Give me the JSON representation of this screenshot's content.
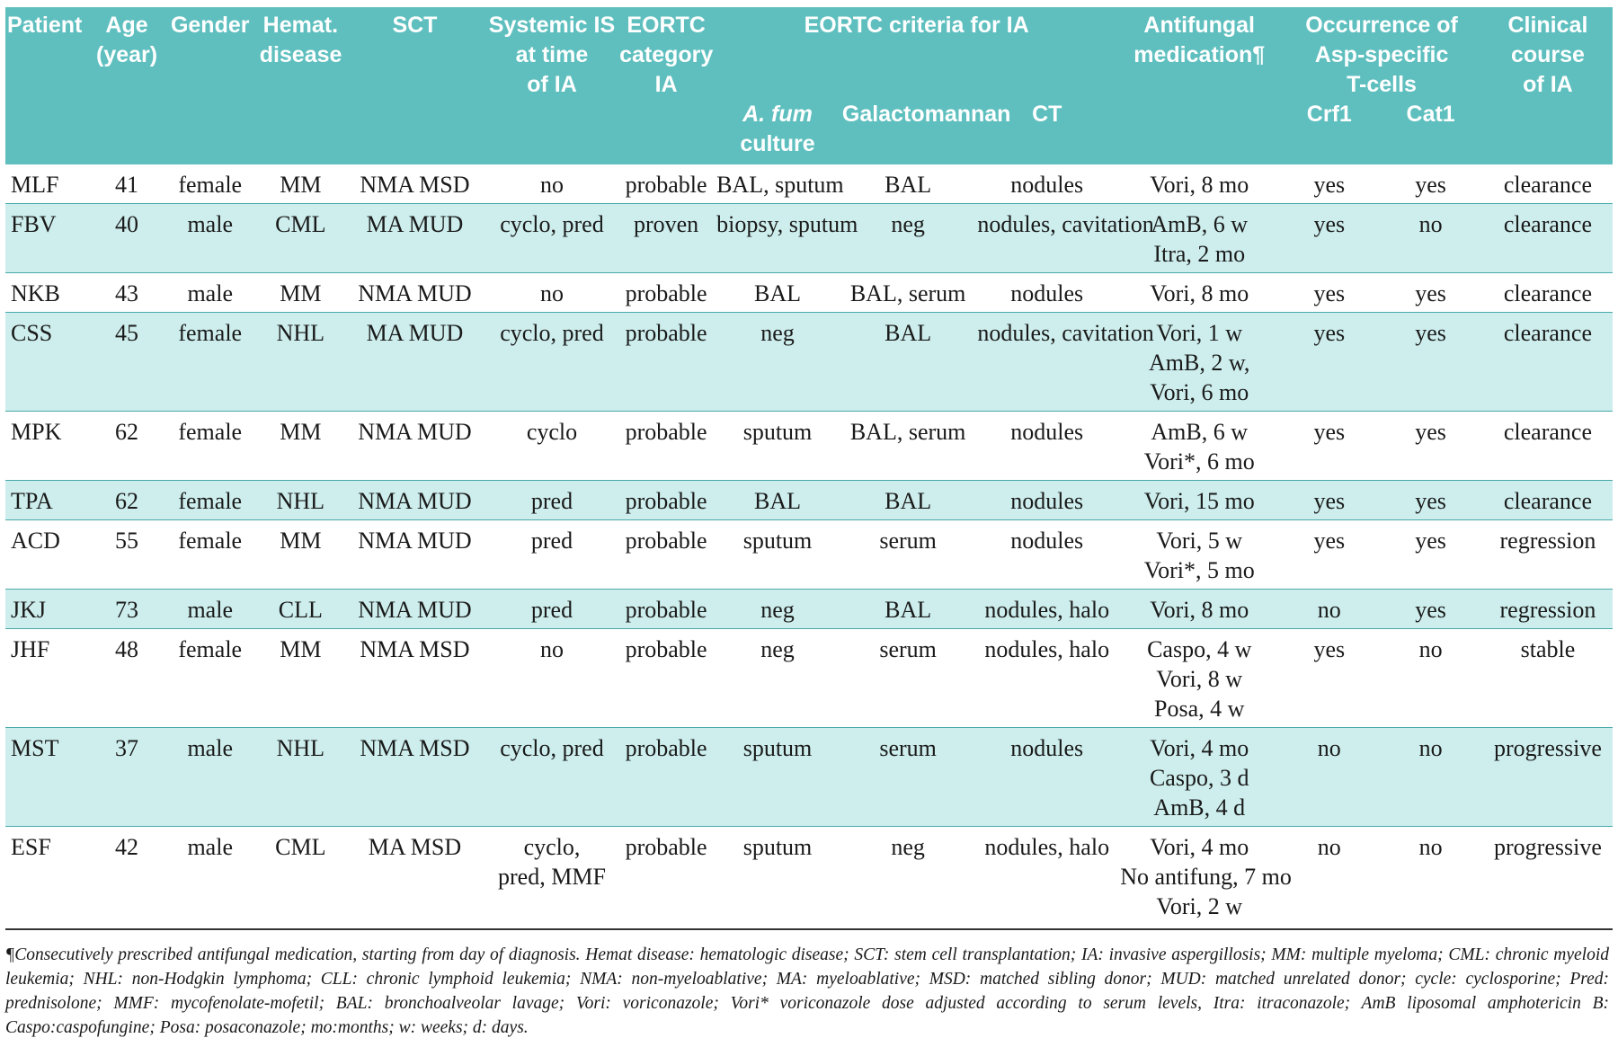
{
  "header": {
    "patient": "Patient",
    "age": [
      "Age",
      "(year)"
    ],
    "gender": "Gender",
    "hemat": [
      "Hemat.",
      "disease"
    ],
    "sct": "SCT",
    "systemic_is": [
      "Systemic IS",
      "at time",
      "of IA"
    ],
    "eortc_category": [
      "EORTC",
      "category",
      "IA"
    ],
    "eortc_criteria": "EORTC criteria for IA",
    "afum_culture_italic": "A. fum",
    "afum_culture_rest": "culture",
    "galactomannan": "Galactomannan",
    "ct": "CT",
    "antifungal": [
      "Antifungal",
      "medication¶"
    ],
    "occurrence": [
      "Occurrence of",
      "Asp-specific",
      "T-cells"
    ],
    "crf1": "Crf1",
    "cat1": "Cat1",
    "clinical": [
      "Clinical",
      "course",
      "of IA"
    ]
  },
  "rows": [
    {
      "patient": "MLF",
      "age": "41",
      "gender": "female",
      "hemat": "MM",
      "sct": "NMA MSD",
      "is": [
        "no"
      ],
      "category": "probable",
      "culture": "BAL, sputum",
      "galacto": "BAL",
      "ct": "nodules",
      "antifungal": [
        "Vori, 8 mo"
      ],
      "crf1": "yes",
      "cat1": "yes",
      "course": "clearance"
    },
    {
      "patient": "FBV",
      "age": "40",
      "gender": "male",
      "hemat": "CML",
      "sct": "MA MUD",
      "is": [
        "cyclo, pred"
      ],
      "category": "proven",
      "culture": "biopsy, sputum",
      "galacto": "neg",
      "ct": "nodules, cavitation",
      "antifungal": [
        "AmB, 6 w",
        "Itra, 2 mo"
      ],
      "crf1": "yes",
      "cat1": "no",
      "course": "clearance"
    },
    {
      "patient": "NKB",
      "age": "43",
      "gender": "male",
      "hemat": "MM",
      "sct": "NMA MUD",
      "is": [
        "no"
      ],
      "category": "probable",
      "culture": "BAL",
      "galacto": "BAL, serum",
      "ct": "nodules",
      "antifungal": [
        "Vori, 8 mo"
      ],
      "crf1": "yes",
      "cat1": "yes",
      "course": "clearance"
    },
    {
      "patient": "CSS",
      "age": "45",
      "gender": "female",
      "hemat": "NHL",
      "sct": "MA MUD",
      "is": [
        "cyclo, pred"
      ],
      "category": "probable",
      "culture": "neg",
      "galacto": "BAL",
      "ct": "nodules, cavitation",
      "antifungal": [
        "Vori, 1 w",
        "AmB, 2 w,",
        "Vori, 6 mo"
      ],
      "crf1": "yes",
      "cat1": "yes",
      "course": "clearance"
    },
    {
      "patient": "MPK",
      "age": "62",
      "gender": "female",
      "hemat": "MM",
      "sct": "NMA MUD",
      "is": [
        "cyclo"
      ],
      "category": "probable",
      "culture": "sputum",
      "galacto": "BAL, serum",
      "ct": "nodules",
      "antifungal": [
        "AmB, 6 w",
        "Vori*, 6 mo"
      ],
      "crf1": "yes",
      "cat1": "yes",
      "course": "clearance"
    },
    {
      "patient": "TPA",
      "age": "62",
      "gender": "female",
      "hemat": "NHL",
      "sct": "NMA MUD",
      "is": [
        "pred"
      ],
      "category": "probable",
      "culture": "BAL",
      "galacto": "BAL",
      "ct": "nodules",
      "antifungal": [
        "Vori, 15 mo"
      ],
      "crf1": "yes",
      "cat1": "yes",
      "course": "clearance"
    },
    {
      "patient": "ACD",
      "age": "55",
      "gender": "female",
      "hemat": "MM",
      "sct": "NMA MUD",
      "is": [
        "pred"
      ],
      "category": "probable",
      "culture": "sputum",
      "galacto": "serum",
      "ct": "nodules",
      "antifungal": [
        "Vori, 5 w",
        "Vori*, 5 mo"
      ],
      "crf1": "yes",
      "cat1": "yes",
      "course": "regression"
    },
    {
      "patient": "JKJ",
      "age": "73",
      "gender": "male",
      "hemat": "CLL",
      "sct": "NMA MUD",
      "is": [
        "pred"
      ],
      "category": "probable",
      "culture": "neg",
      "galacto": "BAL",
      "ct": "nodules, halo",
      "antifungal": [
        "Vori, 8 mo"
      ],
      "crf1": "no",
      "cat1": "yes",
      "course": "regression"
    },
    {
      "patient": "JHF",
      "age": "48",
      "gender": "female",
      "hemat": "MM",
      "sct": "NMA MSD",
      "is": [
        "no"
      ],
      "category": "probable",
      "culture": "neg",
      "galacto": "serum",
      "ct": "nodules, halo",
      "antifungal": [
        "Caspo, 4 w",
        "Vori, 8 w",
        "Posa, 4 w"
      ],
      "crf1": "yes",
      "cat1": "no",
      "course": "stable"
    },
    {
      "patient": "MST",
      "age": "37",
      "gender": "male",
      "hemat": "NHL",
      "sct": "NMA MSD",
      "is": [
        "cyclo, pred"
      ],
      "category": "probable",
      "culture": "sputum",
      "galacto": "serum",
      "ct": "nodules",
      "antifungal": [
        "Vori, 4 mo",
        "Caspo, 3 d",
        "AmB, 4 d"
      ],
      "crf1": "no",
      "cat1": "no",
      "course": "progressive"
    },
    {
      "patient": "ESF",
      "age": "42",
      "gender": "male",
      "hemat": "CML",
      "sct": "MA MSD",
      "is": [
        "cyclo,",
        "pred, MMF"
      ],
      "category": "probable",
      "culture": "sputum",
      "galacto": "neg",
      "ct": "nodules, halo",
      "antifungal": [
        "Vori, 4 mo",
        "No antifung, 7 mo",
        "Vori, 2 w"
      ],
      "crf1": "no",
      "cat1": "no",
      "course": "progressive"
    }
  ],
  "footnote": "¶Consecutively prescribed antifungal medication, starting from day of diagnosis. Hemat disease: hematologic disease; SCT: stem cell transplantation; IA: invasive aspergillosis; MM: multiple myeloma; CML: chronic myeloid leukemia; NHL: non-Hodgkin lymphoma; CLL: chronic lymphoid leukemia;  NMA: non-myeloablative; MA: myeloablative; MSD: matched sibling donor; MUD: matched unrelated donor; cycle: cyclosporine; Pred: prednisolone; MMF: mycofenolate-mofetil; BAL: bronchoalveolar lavage; Vori: voriconazole; Vori* voriconazole dose adjusted according to serum levels, Itra: itraconazole; AmB liposomal amphotericin B: Caspo:caspofungine; Posa: posaconazole; mo:months; w: weeks; d: days.",
  "colors": {
    "header_bg": "#5fbfbf",
    "row_shade": "#cdeeed",
    "rule": "#4aa9a9"
  }
}
